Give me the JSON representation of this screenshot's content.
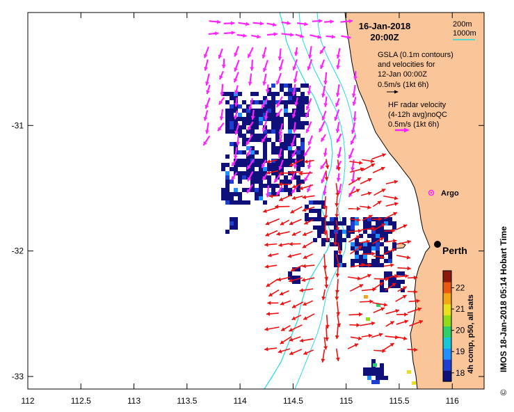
{
  "title": {
    "date": "16-Jan-2018",
    "time": "20:00Z"
  },
  "legend": {
    "contour_200": "200m",
    "contour_1000": "1000m",
    "gsla_line1": "GSLA (0.1m contours)",
    "gsla_line2": "and velocities for",
    "gsla_line3": "12-Jan 00:00Z",
    "gsla_scale": "0.5m/s (1kt 6h)",
    "hf_line1": "HF radar velocity",
    "hf_line2": "(4-12h avg)noQC",
    "hf_scale": "0.5m/s (1kt 6h)"
  },
  "places": [
    {
      "name": "Argo",
      "lon": 115.88,
      "lat": -31.53
    },
    {
      "name": "Perth",
      "lon": 115.86,
      "lat": -31.95
    }
  ],
  "axes": {
    "x_ticks": [
      "112",
      "112.5",
      "113",
      "113.5",
      "114",
      "114.5",
      "115",
      "115.5",
      "116"
    ],
    "y_ticks": [
      "-31",
      "-32",
      "-33"
    ],
    "x_range": [
      112.0,
      116.3
    ],
    "y_range": [
      -33.1,
      -30.1
    ]
  },
  "colorbar": {
    "label": "4h comp, p50, all sats",
    "ticks": [
      "18",
      "19",
      "20",
      "21",
      "22"
    ],
    "range": [
      17.6,
      22.8
    ]
  },
  "side_label": "IMOS 18-Jan-2018 05:14 Hobart Time",
  "copyright": "©",
  "colors": {
    "land": "#f9c599",
    "hf_vectors": "#ff22ff",
    "gsla_vectors": "#ee1111",
    "contours": "#22dddd",
    "sst_dark": "#10107a",
    "place_argo": "#ff22ff"
  }
}
